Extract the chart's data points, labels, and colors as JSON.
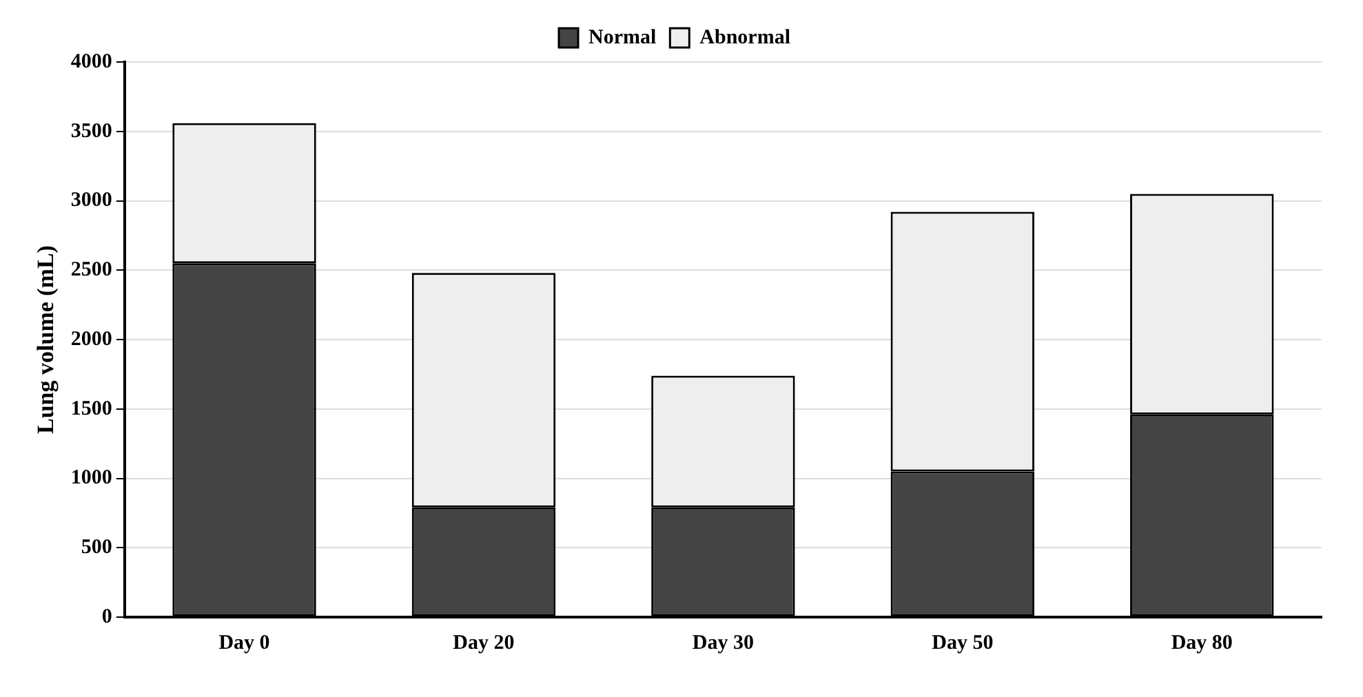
{
  "chart_data": {
    "type": "bar",
    "ylabel": "Lung volume (mL)",
    "categories": [
      "Day 0",
      "Day 20",
      "Day 30",
      "Day 50",
      "Day 80"
    ],
    "stacked": true,
    "series": [
      {
        "name": "Normal",
        "color": "#444444",
        "values": [
          2550,
          790,
          790,
          1050,
          1460
        ]
      },
      {
        "name": "Abnormal",
        "color": "#eeeeee",
        "values": [
          1010,
          1690,
          950,
          1870,
          1590
        ]
      }
    ],
    "ylim": [
      0,
      4000
    ],
    "yticks": [
      0,
      500,
      1000,
      1500,
      2000,
      2500,
      3000,
      3500,
      4000
    ],
    "grid": "y",
    "legend": "top"
  }
}
